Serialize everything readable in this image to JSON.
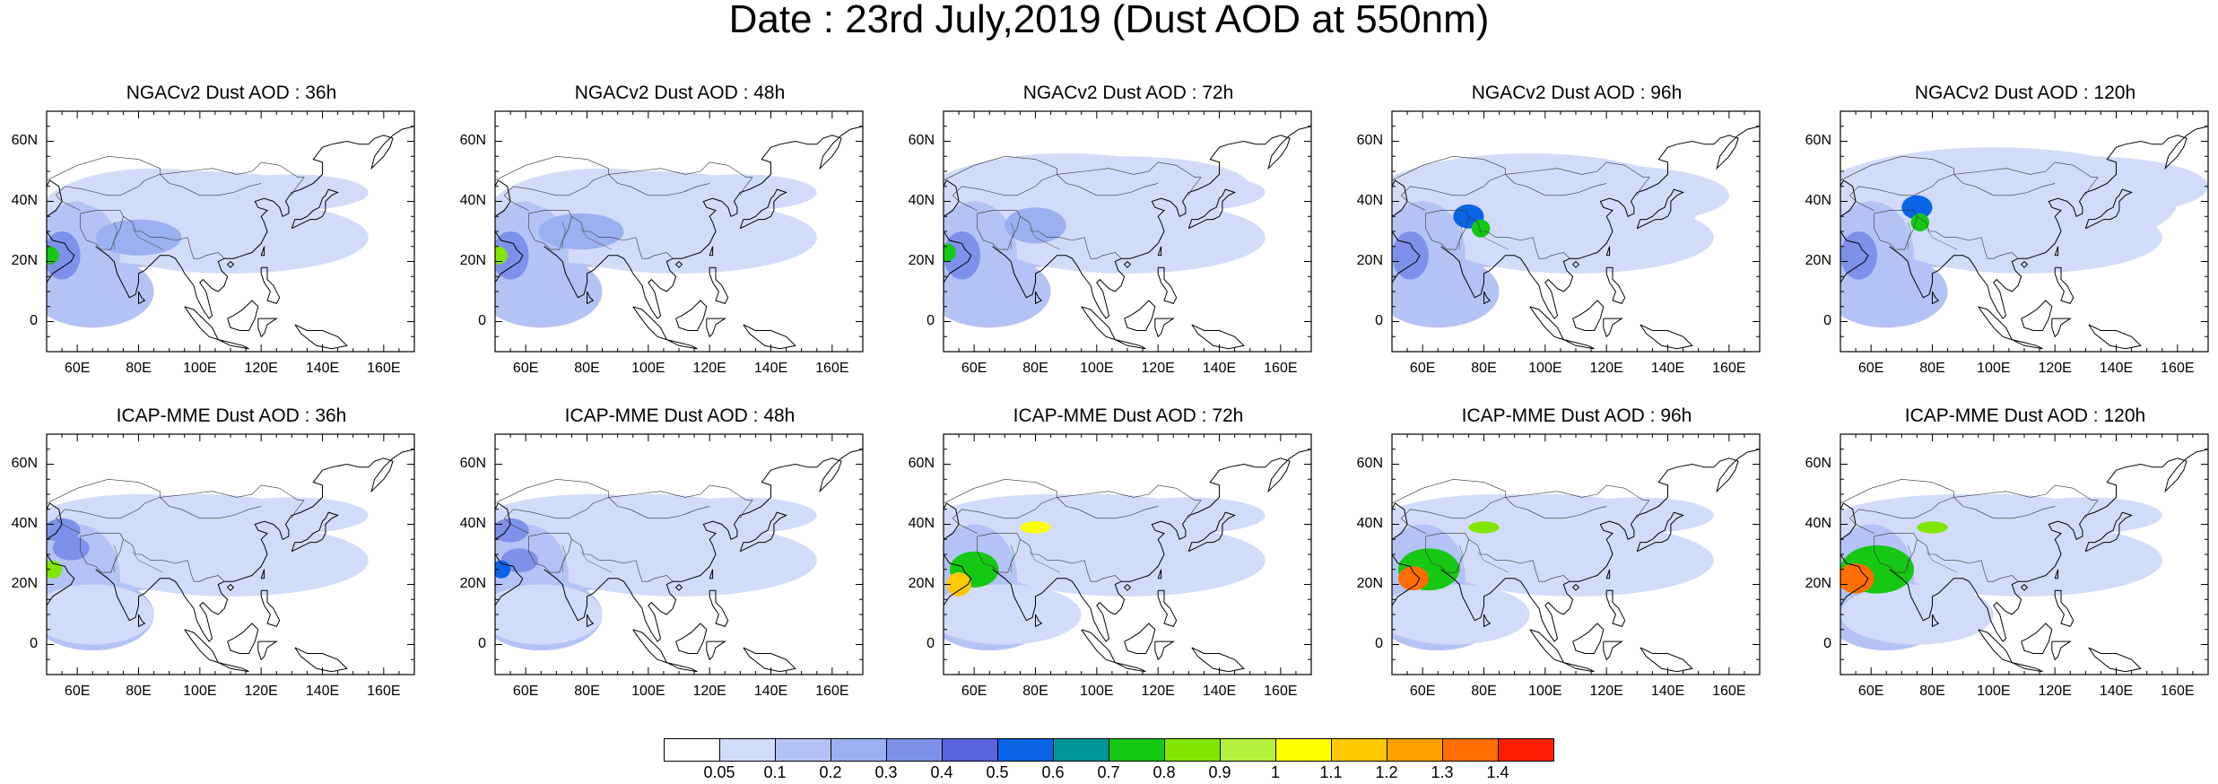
{
  "title": "Date : 23rd July,2019 (Dust AOD at 550nm)",
  "panels": [
    {
      "title": "NGACv2 Dust AOD : 36h",
      "model": "NGACv2",
      "lead": "36h"
    },
    {
      "title": "NGACv2 Dust AOD : 48h",
      "model": "NGACv2",
      "lead": "48h"
    },
    {
      "title": "NGACv2 Dust AOD : 72h",
      "model": "NGACv2",
      "lead": "72h"
    },
    {
      "title": "NGACv2 Dust AOD : 96h",
      "model": "NGACv2",
      "lead": "96h"
    },
    {
      "title": "NGACv2 Dust AOD : 120h",
      "model": "NGACv2",
      "lead": "120h"
    },
    {
      "title": "ICAP-MME Dust AOD : 36h",
      "model": "ICAP-MME",
      "lead": "36h"
    },
    {
      "title": "ICAP-MME Dust AOD : 48h",
      "model": "ICAP-MME",
      "lead": "48h"
    },
    {
      "title": "ICAP-MME Dust AOD : 72h",
      "model": "ICAP-MME",
      "lead": "72h"
    },
    {
      "title": "ICAP-MME Dust AOD : 96h",
      "model": "ICAP-MME",
      "lead": "96h"
    },
    {
      "title": "ICAP-MME Dust AOD : 120h",
      "model": "ICAP-MME",
      "lead": "120h"
    }
  ],
  "axes": {
    "lat_ticks": [
      "60N",
      "40N",
      "20N",
      "0"
    ],
    "lon_ticks": [
      "60E",
      "80E",
      "100E",
      "120E",
      "140E",
      "160E"
    ],
    "lat_values": [
      60,
      40,
      20,
      0
    ],
    "lon_values": [
      60,
      80,
      100,
      120,
      140,
      160
    ],
    "lon_range": [
      50,
      170
    ],
    "lat_range": [
      -10,
      70
    ]
  },
  "colorbar": {
    "labels": [
      "0.05",
      "0.1",
      "0.2",
      "0.3",
      "0.4",
      "0.5",
      "0.6",
      "0.7",
      "0.8",
      "0.9",
      "1",
      "1.1",
      "1.2",
      "1.3",
      "1.4"
    ],
    "colors": [
      "#ffffff",
      "#d2dcfa",
      "#b4c3f5",
      "#9bb0f0",
      "#7d91eb",
      "#5a64dc",
      "#0a64e6",
      "#009696",
      "#14c814",
      "#80e600",
      "#b4f03c",
      "#ffff00",
      "#ffc800",
      "#ffa000",
      "#ff6e00",
      "#ff1e00"
    ]
  }
}
